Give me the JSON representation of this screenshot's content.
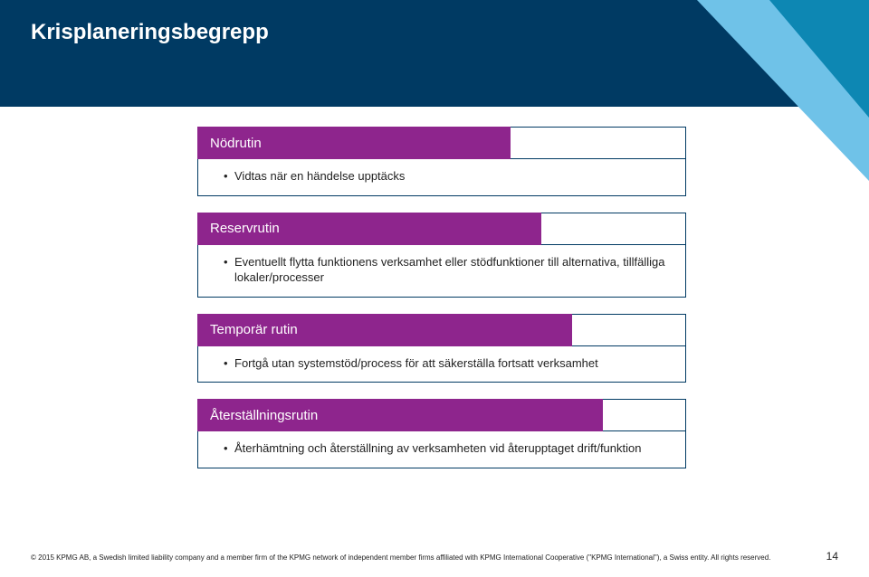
{
  "slide": {
    "title": "Krisplaneringsbegrepp",
    "header_bg": "#003a63",
    "pill_border": "#003a63"
  },
  "blocks": [
    {
      "label": "Nödrutin",
      "label_width": 346,
      "bg": "#8e258d",
      "bullet": "Vidtas när en händelse upptäcks"
    },
    {
      "label": "Reservrutin",
      "label_width": 380,
      "bg": "#8e258d",
      "bullet": "Eventuellt flytta funktionens verksamhet eller stödfunktioner till alternativa, tillfälliga lokaler/processer"
    },
    {
      "label": "Temporär rutin",
      "label_width": 414,
      "bg": "#8e258d",
      "bullet": "Fortgå utan systemstöd/process för att säkerställa fortsatt verksamhet"
    },
    {
      "label": "Återställningsrutin",
      "label_width": 448,
      "bg": "#8e258d",
      "bullet": "Återhämtning och återställning av verksamheten vid återupptaget drift/funktion"
    }
  ],
  "footer": {
    "copyright": "© 2015 KPMG AB, a Swedish limited liability company and a member firm of the KPMG network of independent member firms affiliated with KPMG International Cooperative (\"KPMG International\"), a Swiss entity. All rights reserved.",
    "page_number": "14"
  },
  "accent_colors": {
    "light": "#6fc2e8",
    "dark": "#0d87b3"
  }
}
